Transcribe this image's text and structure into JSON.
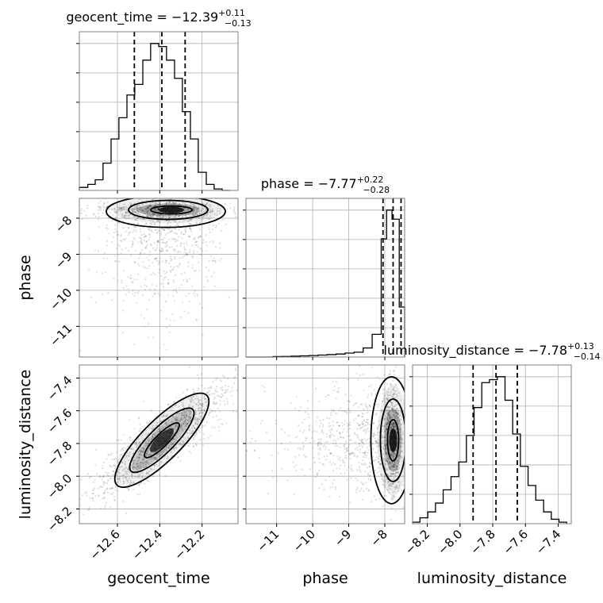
{
  "chart_data": {
    "type": "corner",
    "parameters": [
      "geocent_time",
      "phase",
      "luminosity_distance"
    ],
    "axis_labels": {
      "geocent_time": "geocent_time",
      "phase": "phase",
      "luminosity_distance": "luminosity_distance"
    },
    "ticks": {
      "geocent_time": [
        "−12.6",
        "−12.4",
        "−12.2"
      ],
      "phase": [
        "−11",
        "−10",
        "−9",
        "−8"
      ],
      "luminosity_distance": [
        "−8.2",
        "−8.0",
        "−7.8",
        "−7.6",
        "−7.4"
      ]
    },
    "ranges": {
      "geocent_time": [
        -12.78,
        -12.03
      ],
      "phase": [
        -11.85,
        -7.45
      ],
      "luminosity_distance": [
        -8.29,
        -7.32
      ]
    },
    "titles": [
      {
        "param": "geocent_time",
        "prefix": "geocent_time = ",
        "median": "−12.39",
        "plus": "+0.11",
        "minus": "−0.13"
      },
      {
        "param": "phase",
        "prefix": "phase = ",
        "median": "−7.77",
        "plus": "+0.22",
        "minus": "−0.28"
      },
      {
        "param": "luminosity_distance",
        "prefix": "luminosity_distance = ",
        "median": "−7.78",
        "plus": "+0.13",
        "minus": "−0.14"
      }
    ],
    "quantiles": {
      "geocent_time": [
        -12.52,
        -12.39,
        -12.28
      ],
      "phase": [
        -8.05,
        -7.77,
        -7.55
      ],
      "luminosity_distance": [
        -7.92,
        -7.78,
        -7.65
      ]
    },
    "histograms": {
      "geocent_time": {
        "bin_edges": [
          -12.78,
          -12.74,
          -12.705,
          -12.668,
          -12.63,
          -12.593,
          -12.555,
          -12.518,
          -12.48,
          -12.443,
          -12.405,
          -12.368,
          -12.33,
          -12.293,
          -12.255,
          -12.218,
          -12.18,
          -12.143,
          -12.105,
          -12.068
        ],
        "counts": [
          2,
          4,
          7,
          18,
          34,
          48,
          63,
          70,
          86,
          97,
          95,
          86,
          74,
          52,
          34,
          12,
          4,
          1,
          0
        ]
      },
      "phase": {
        "bin_edges": [
          -11.85,
          -11.6,
          -11.35,
          -11.1,
          -10.85,
          -10.6,
          -10.35,
          -10.1,
          -9.85,
          -9.6,
          -9.35,
          -9.1,
          -8.85,
          -8.6,
          -8.35,
          -8.1,
          -7.95,
          -7.8,
          -7.6,
          -7.45
        ],
        "counts": [
          0,
          0,
          0,
          0.3,
          0.4,
          0.6,
          0.8,
          1.0,
          1.3,
          1.6,
          2.0,
          2.6,
          3.2,
          6,
          15,
          78,
          97,
          91,
          33
        ]
      },
      "luminosity_distance": {
        "bin_edges": [
          -8.29,
          -8.245,
          -8.197,
          -8.15,
          -8.103,
          -8.055,
          -8.008,
          -7.961,
          -7.914,
          -7.867,
          -7.82,
          -7.772,
          -7.725,
          -7.678,
          -7.631,
          -7.584,
          -7.537,
          -7.489,
          -7.442,
          -7.395,
          -7.348
        ],
        "counts": [
          1,
          4,
          8,
          14,
          23,
          32,
          42,
          60,
          79,
          96,
          98,
          100,
          84,
          61,
          39,
          26,
          16,
          8,
          3,
          1
        ]
      }
    },
    "grid": true
  }
}
